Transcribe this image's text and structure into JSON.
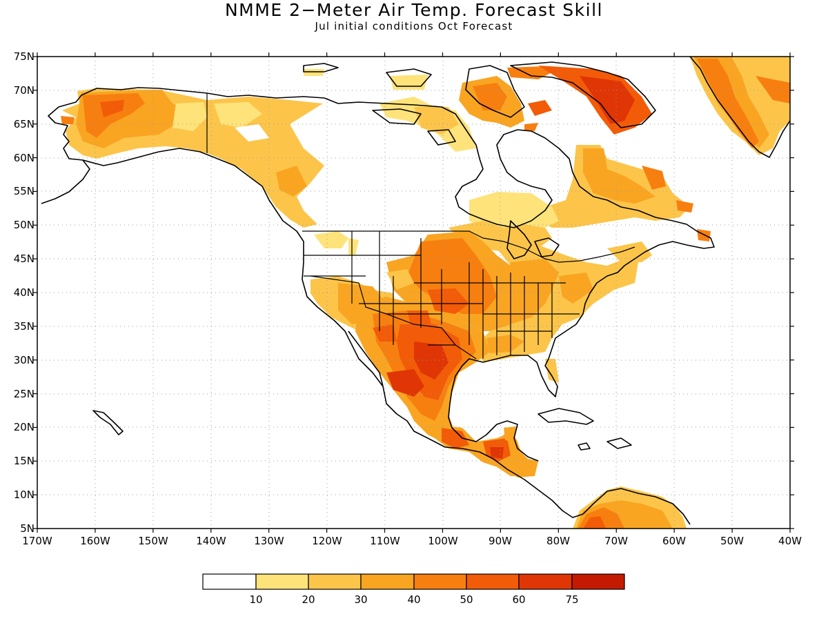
{
  "title": "NMME 2−Meter Air Temp. Forecast Skill",
  "subtitle": "Jul initial conditions  Oct Forecast",
  "map": {
    "lon_range": [
      -170,
      -40
    ],
    "lat_range": [
      5,
      75
    ],
    "lat_ticks": [
      "5N",
      "10N",
      "15N",
      "20N",
      "25N",
      "30N",
      "35N",
      "40N",
      "45N",
      "50N",
      "55N",
      "60N",
      "65N",
      "70N",
      "75N"
    ],
    "lon_ticks": [
      "170W",
      "160W",
      "150W",
      "140W",
      "130W",
      "120W",
      "110W",
      "100W",
      "90W",
      "80W",
      "70W",
      "60W",
      "50W",
      "40W"
    ],
    "grid": "dotted"
  },
  "colorbar": {
    "labels": [
      "10",
      "20",
      "30",
      "40",
      "50",
      "60",
      "75"
    ],
    "colors": [
      "#ffffff",
      "#fde37a",
      "#fcc54a",
      "#f9a522",
      "#f77f10",
      "#f25b08",
      "#e03504",
      "#c41a02",
      "#9a0a02"
    ]
  },
  "skill_field": {
    "units": "skill",
    "regions": [
      {
        "name": "alaska",
        "level": 30
      },
      {
        "name": "yukon-bc",
        "level": 20
      },
      {
        "name": "north-canada",
        "level": 20
      },
      {
        "name": "baffin-island",
        "level": 40
      },
      {
        "name": "northern-quebec",
        "level": 30
      },
      {
        "name": "greenland-coast",
        "level": 40
      },
      {
        "name": "hudson-bay-south",
        "level": 20
      },
      {
        "name": "us-west",
        "level": 30
      },
      {
        "name": "us-plains",
        "level": 40
      },
      {
        "name": "us-east",
        "level": 30
      },
      {
        "name": "texas-mexico",
        "level": 50
      },
      {
        "name": "central-america",
        "level": 50
      },
      {
        "name": "northern-south-america",
        "level": 40
      }
    ]
  }
}
